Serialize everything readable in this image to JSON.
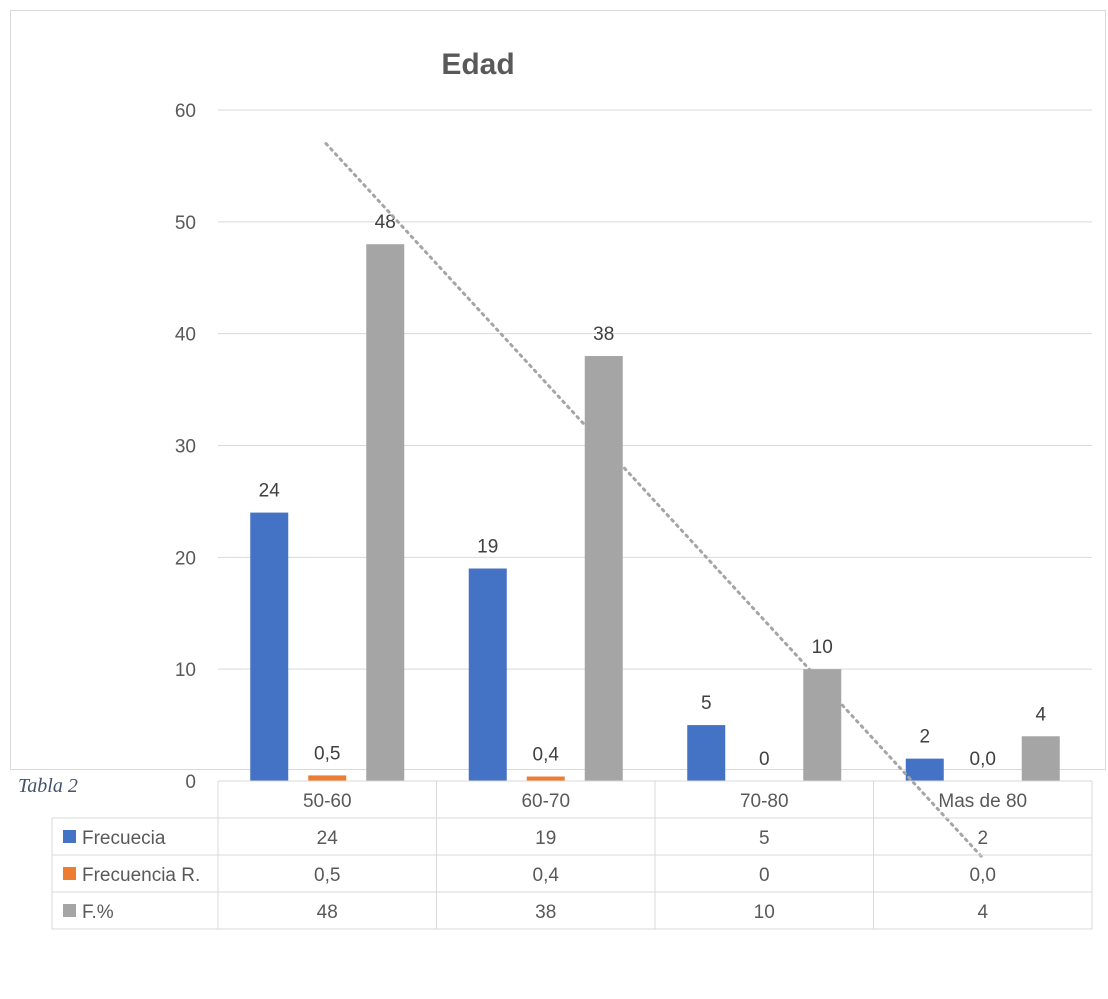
{
  "chart_data": {
    "type": "bar",
    "title": "Edad",
    "categories": [
      "50-60",
      "60-70",
      "70-80",
      "Mas de 80"
    ],
    "series": [
      {
        "name": "Frecuecia",
        "values": [
          24,
          19,
          5,
          2
        ],
        "labels": [
          "24",
          "19",
          "5",
          "2"
        ],
        "color": "#4472c4"
      },
      {
        "name": "Frecuencia R.",
        "values": [
          0.5,
          0.4,
          0,
          0.0
        ],
        "labels": [
          "0,5",
          "0,4",
          "0",
          "0,0"
        ],
        "color": "#ed7d31"
      },
      {
        "name": "F.%",
        "values": [
          48,
          38,
          10,
          4
        ],
        "labels": [
          "48",
          "38",
          "10",
          "4"
        ],
        "color": "#a5a5a5"
      }
    ],
    "yticks": [
      "0",
      "10",
      "20",
      "30",
      "40",
      "50",
      "60"
    ],
    "ylim": [
      0,
      60
    ],
    "grid": true,
    "trendline": {
      "series": "F.%",
      "style": "dotted",
      "color": "#a5a5a5"
    },
    "legend": "data-table"
  },
  "caption": "Tabla 2"
}
